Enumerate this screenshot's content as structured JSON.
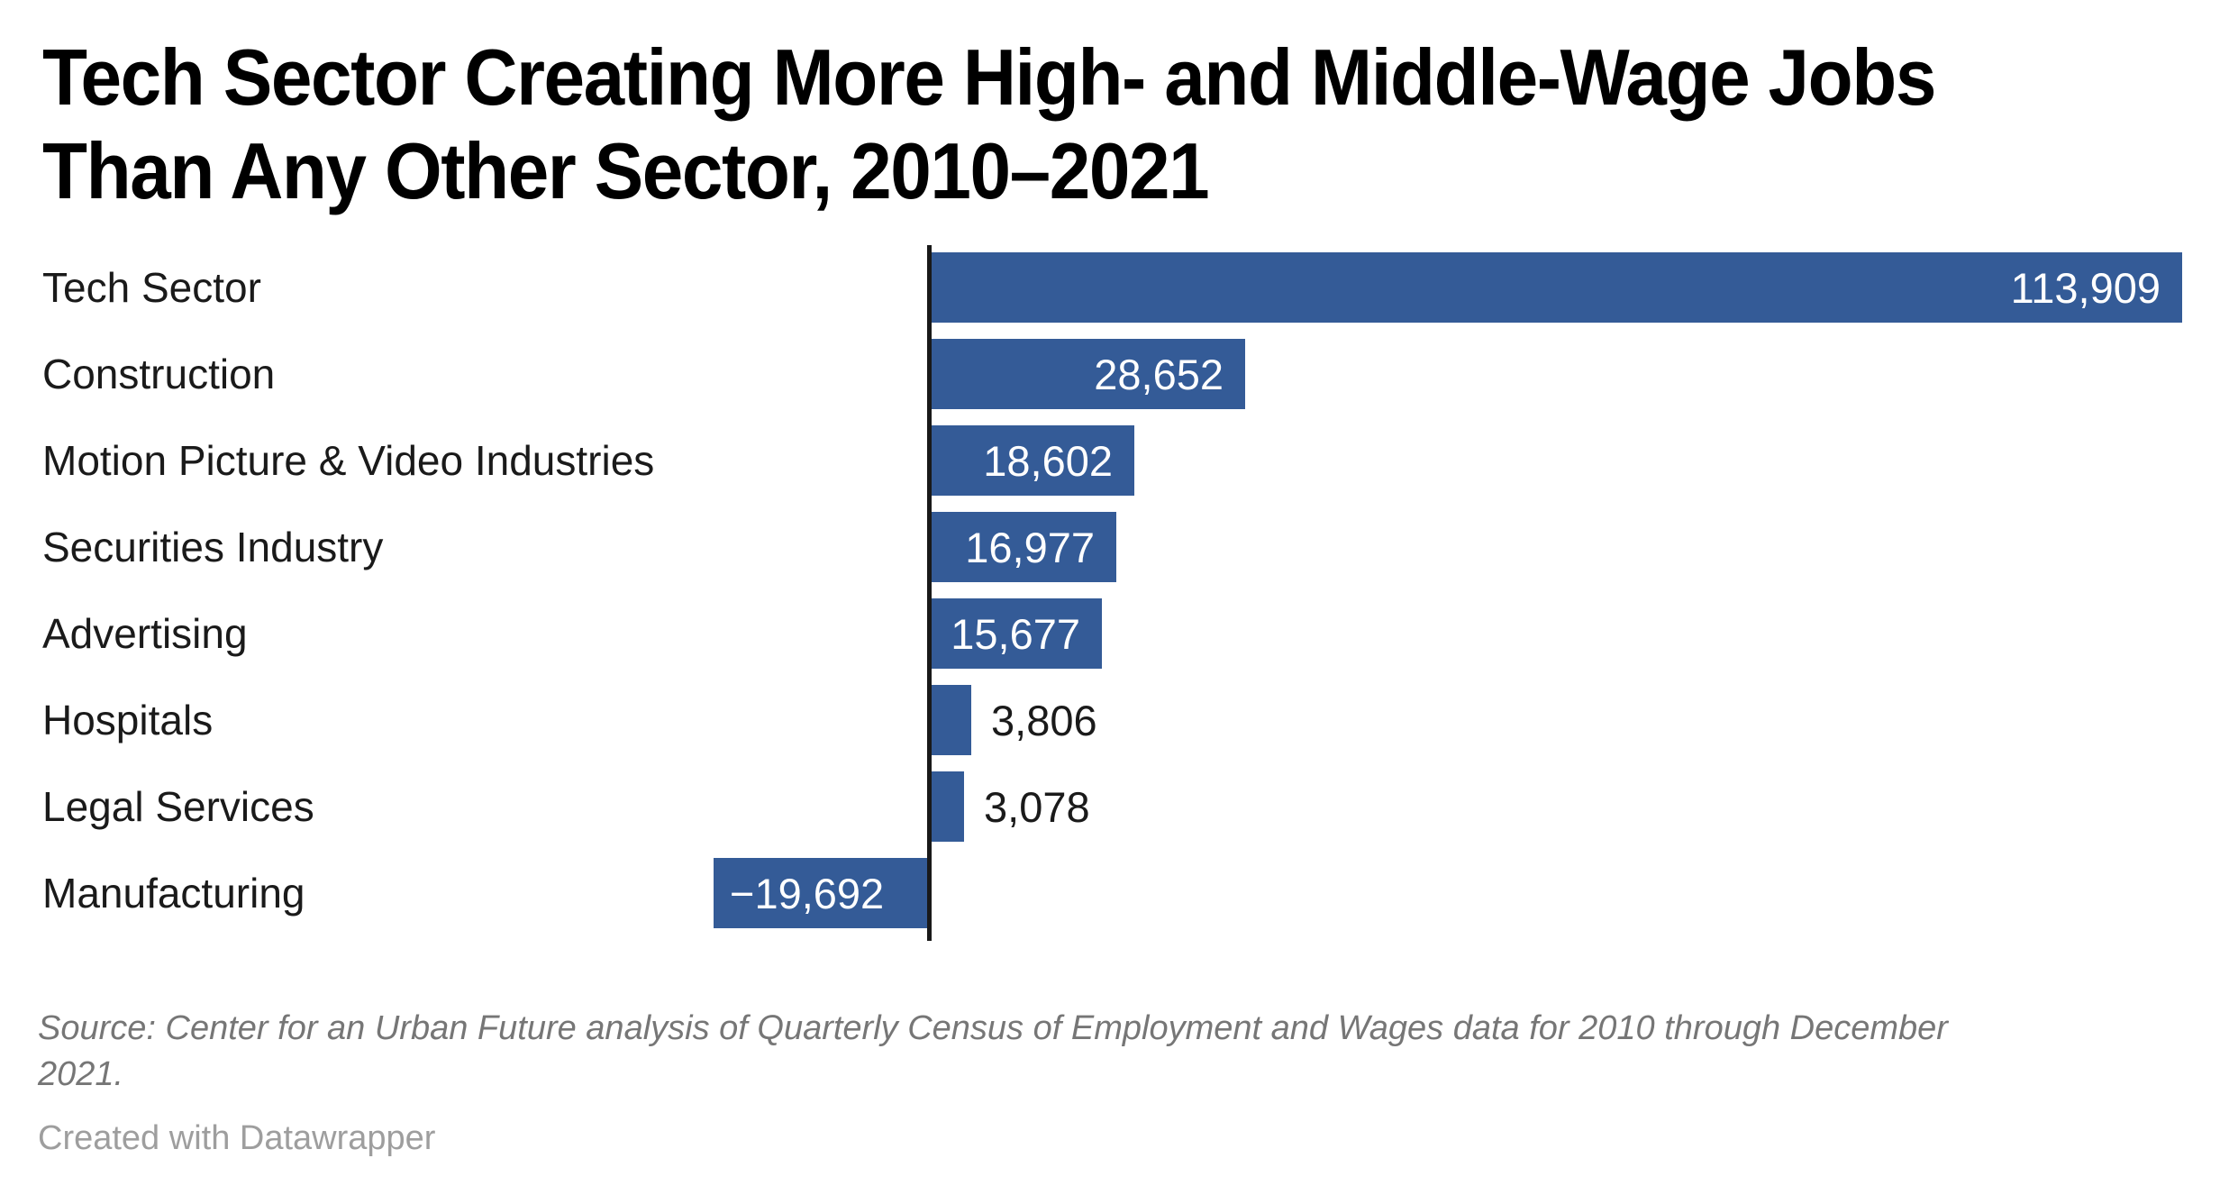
{
  "header": {
    "title_line1": "Tech Sector Creating More High- and Middle-Wage Jobs",
    "title_line2": "Than Any Other Sector, 2010–2021"
  },
  "chart_data": {
    "type": "bar",
    "orientation": "horizontal",
    "title": "Tech Sector Creating More High- and Middle-Wage Jobs Than Any Other Sector, 2010–2021",
    "categories": [
      "Tech Sector",
      "Construction",
      "Motion Picture & Video Industries",
      "Securities Industry",
      "Advertising",
      "Hospitals",
      "Legal Services",
      "Manufacturing"
    ],
    "values": [
      113909,
      28652,
      18602,
      16977,
      15677,
      3806,
      3078,
      -19692
    ],
    "value_labels": [
      "113,909",
      "28,652",
      "18,602",
      "16,977",
      "15,677",
      "3,806",
      "3,078",
      "−19,692"
    ],
    "label_placement": [
      "inside-right",
      "inside-right",
      "inside-right",
      "inside-right",
      "inside-right",
      "outside-right",
      "outside-right",
      "inside-left"
    ],
    "xlabel": "",
    "ylabel": "",
    "xmax": 113909,
    "xmin": -19692,
    "grid": "off",
    "legend": "none",
    "bar_color": "#345b97",
    "axis_color": "#191919"
  },
  "footer": {
    "source": "Source: Center for an Urban Future analysis of Quarterly Census of Employment and Wages data for 2010 through December 2021.",
    "credit": "Created with Datawrapper"
  },
  "colors": {
    "title_text": "#000000",
    "category_text": "#1a1a1a",
    "value_inside_text": "#ffffff",
    "value_outside_text": "#1a1a1a",
    "source_text": "#767676",
    "credit_text": "#9e9e9e",
    "background": "#ffffff"
  }
}
